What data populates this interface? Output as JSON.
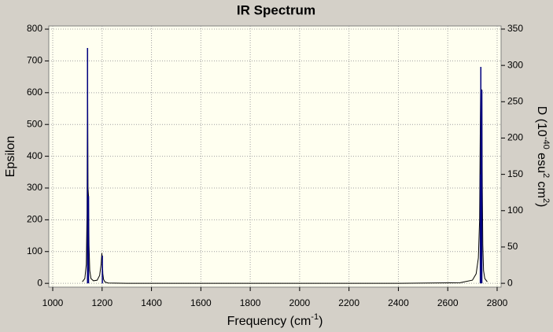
{
  "chart_data": {
    "type": "spectrum",
    "title": "IR Spectrum",
    "xlabel": [
      {
        "text": "Frequency (cm"
      },
      {
        "text": "-1",
        "sup": true
      },
      {
        "text": ")"
      }
    ],
    "ylabel": [
      {
        "text": "Epsilon"
      }
    ],
    "y2label": [
      {
        "text": "D (10"
      },
      {
        "text": "-40",
        "sup": true
      },
      {
        "text": " esu"
      },
      {
        "text": "2",
        "sup": true
      },
      {
        "text": " cm"
      },
      {
        "text": "2",
        "sup": true
      },
      {
        "text": ")"
      }
    ],
    "xlim": [
      984,
      2816
    ],
    "ylim": [
      -12,
      810
    ],
    "y2lim": [
      -5.3,
      354.3
    ],
    "xticks": [
      1000,
      1200,
      1400,
      1600,
      1800,
      2000,
      2200,
      2400,
      2600,
      2800
    ],
    "yticks": [
      0,
      100,
      200,
      300,
      400,
      500,
      600,
      700,
      800
    ],
    "y2ticks": [
      0,
      50,
      100,
      150,
      200,
      250,
      300,
      350
    ],
    "grid": true,
    "series": [
      {
        "name": "Epsilon",
        "kind": "line",
        "color": "#000000",
        "x": [
          1120,
          1130,
          1136,
          1139,
          1141,
          1143,
          1145,
          1147,
          1150,
          1155,
          1165,
          1180,
          1190,
          1196,
          1199,
          1201,
          1203,
          1206,
          1212,
          1225,
          1300,
          1600,
          2000,
          2400,
          2650,
          2700,
          2715,
          2724,
          2729,
          2732,
          2734,
          2736,
          2738,
          2740,
          2742,
          2745,
          2750,
          2760
        ],
        "values": [
          5,
          15,
          60,
          220,
          740,
          300,
          275,
          120,
          40,
          15,
          8,
          10,
          25,
          60,
          95,
          70,
          30,
          12,
          4,
          1,
          0,
          0,
          0,
          0,
          2,
          10,
          30,
          80,
          200,
          520,
          680,
          400,
          610,
          300,
          120,
          40,
          15,
          5
        ]
      },
      {
        "name": "D",
        "kind": "sticks",
        "axis": "y2",
        "color": "#000080",
        "x": [
          1141,
          1145,
          1201,
          2732,
          2734,
          2738
        ],
        "values": [
          324,
          120,
          38,
          150,
          298,
          266
        ]
      }
    ]
  }
}
